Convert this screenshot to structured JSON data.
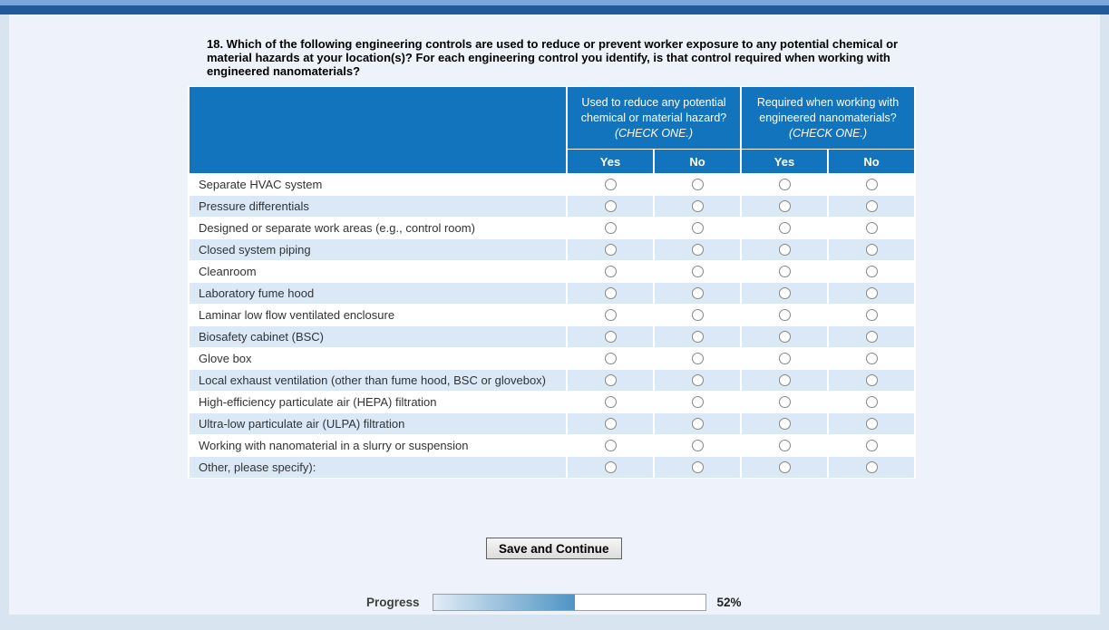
{
  "page": {
    "question": "18. Which of the following engineering controls are used to reduce or prevent worker exposure to any potential chemical or material hazards at your location(s)? For each engineering control you identify, is that control required when working with engineered nanomaterials?",
    "save_button_label": "Save and Continue",
    "progress_label": "Progress",
    "progress_percent": "52%",
    "progress_value": 52
  },
  "table": {
    "group_headers": [
      {
        "line1": "Used to reduce any potential chemical or material hazard?",
        "note": "(CHECK ONE.)"
      },
      {
        "line1": "Required when working with engineered nanomaterials?",
        "note": "(CHECK ONE.)"
      }
    ],
    "sub_headers": [
      "Yes",
      "No",
      "Yes",
      "No"
    ],
    "rows": [
      "Separate HVAC system",
      "Pressure differentials",
      "Designed or separate work areas (e.g., control room)",
      "Closed system piping",
      "Cleanroom",
      "Laboratory fume hood",
      "Laminar low flow ventilated enclosure",
      "Biosafety cabinet (BSC)",
      "Glove box",
      "Local exhaust ventilation (other than fume hood, BSC or glovebox)",
      "High-efficiency particulate air (HEPA) filtration",
      "Ultra-low particulate air (ULPA) filtration",
      "Working with nanomaterial in a slurry or suspension",
      "Other, please specify):"
    ]
  },
  "colors": {
    "header_blue": "#1274bc",
    "stripe_blue": "#dbe8f6",
    "top_strip": "#7aa7d8",
    "top_bar": "#1e5a9c",
    "outer_background": "#d9e4f1",
    "panel_background": "#eef2fa"
  }
}
